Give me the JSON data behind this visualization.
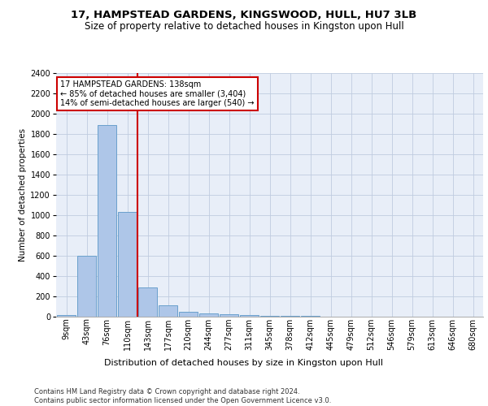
{
  "title_line1": "17, HAMPSTEAD GARDENS, KINGSWOOD, HULL, HU7 3LB",
  "title_line2": "Size of property relative to detached houses in Kingston upon Hull",
  "xlabel": "Distribution of detached houses by size in Kingston upon Hull",
  "ylabel": "Number of detached properties",
  "footnote": "Contains HM Land Registry data © Crown copyright and database right 2024.\nContains public sector information licensed under the Open Government Licence v3.0.",
  "annotation_line1": "17 HAMPSTEAD GARDENS: 138sqm",
  "annotation_line2": "← 85% of detached houses are smaller (3,404)",
  "annotation_line3": "14% of semi-detached houses are larger (540) →",
  "bar_color": "#aec6e8",
  "bar_edge_color": "#6aa0cc",
  "vline_color": "#cc0000",
  "annotation_box_color": "#cc0000",
  "background_color": "#e8eef8",
  "grid_color": "#c0cce0",
  "categories": [
    "9sqm",
    "43sqm",
    "76sqm",
    "110sqm",
    "143sqm",
    "177sqm",
    "210sqm",
    "244sqm",
    "277sqm",
    "311sqm",
    "345sqm",
    "378sqm",
    "412sqm",
    "445sqm",
    "479sqm",
    "512sqm",
    "546sqm",
    "579sqm",
    "613sqm",
    "646sqm",
    "680sqm"
  ],
  "values": [
    20,
    600,
    1890,
    1030,
    290,
    115,
    50,
    35,
    25,
    15,
    5,
    5,
    5,
    0,
    0,
    0,
    0,
    0,
    0,
    0,
    0
  ],
  "ylim": [
    0,
    2400
  ],
  "yticks": [
    0,
    200,
    400,
    600,
    800,
    1000,
    1200,
    1400,
    1600,
    1800,
    2000,
    2200,
    2400
  ],
  "vline_x_index": 4,
  "title1_fontsize": 9.5,
  "title2_fontsize": 8.5,
  "ylabel_fontsize": 7.5,
  "xlabel_fontsize": 8.0,
  "tick_fontsize": 7.0,
  "annotation_fontsize": 7.0,
  "footnote_fontsize": 6.0
}
